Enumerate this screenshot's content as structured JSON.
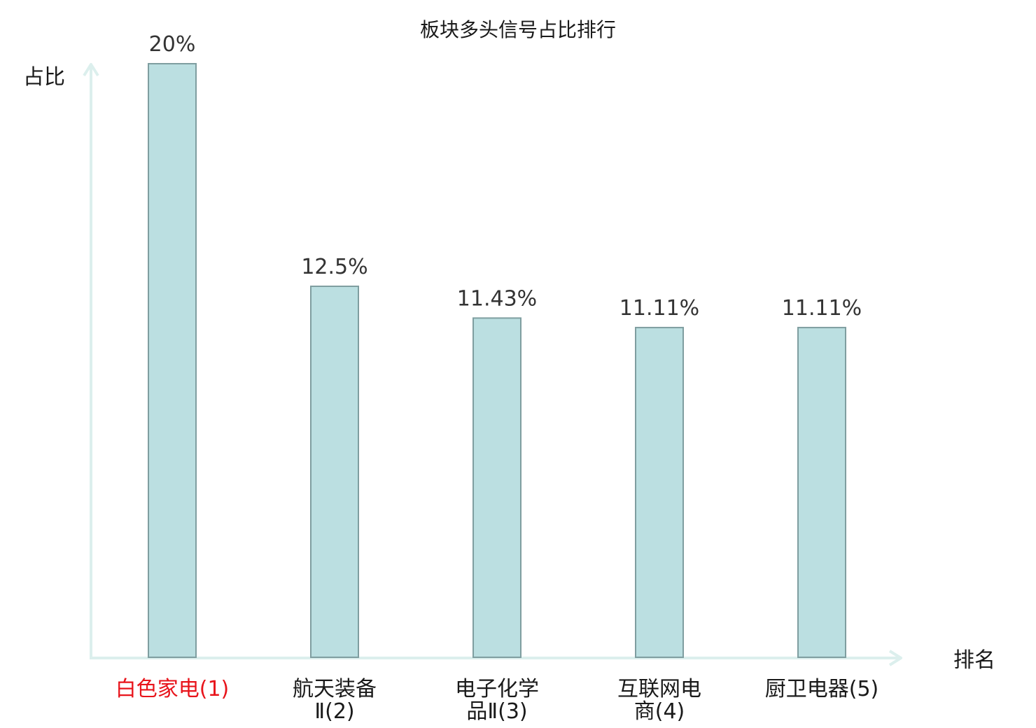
{
  "chart_data": {
    "type": "bar",
    "title": "板块多头信号占比排行",
    "ylabel": "占比",
    "xlabel": "排名",
    "categories": [
      "白色家电(1)",
      "航天装备Ⅱ(2)",
      "电子化学品Ⅱ(3)",
      "互联网电商(4)",
      "厨卫电器(5)"
    ],
    "category_lines": [
      [
        "白色家电(1)"
      ],
      [
        "航天装备",
        "Ⅱ(2)"
      ],
      [
        "电子化学",
        "品Ⅱ(3)"
      ],
      [
        "互联网电",
        "商(4)"
      ],
      [
        "厨卫电器(5)"
      ]
    ],
    "values": [
      20,
      12.5,
      11.43,
      11.11,
      11.11
    ],
    "value_labels": [
      "20%",
      "12.5%",
      "11.43%",
      "11.11%",
      "11.11%"
    ],
    "ylim": [
      0,
      20
    ],
    "grid": false,
    "highlight_index": 0,
    "colors": {
      "bar_fill": "#bbdfe1",
      "bar_stroke": "#7f9ea0",
      "axis": "#dcefed",
      "highlight_text": "#e8141b",
      "text": "#1a1a1a",
      "value_text": "#333333"
    }
  }
}
